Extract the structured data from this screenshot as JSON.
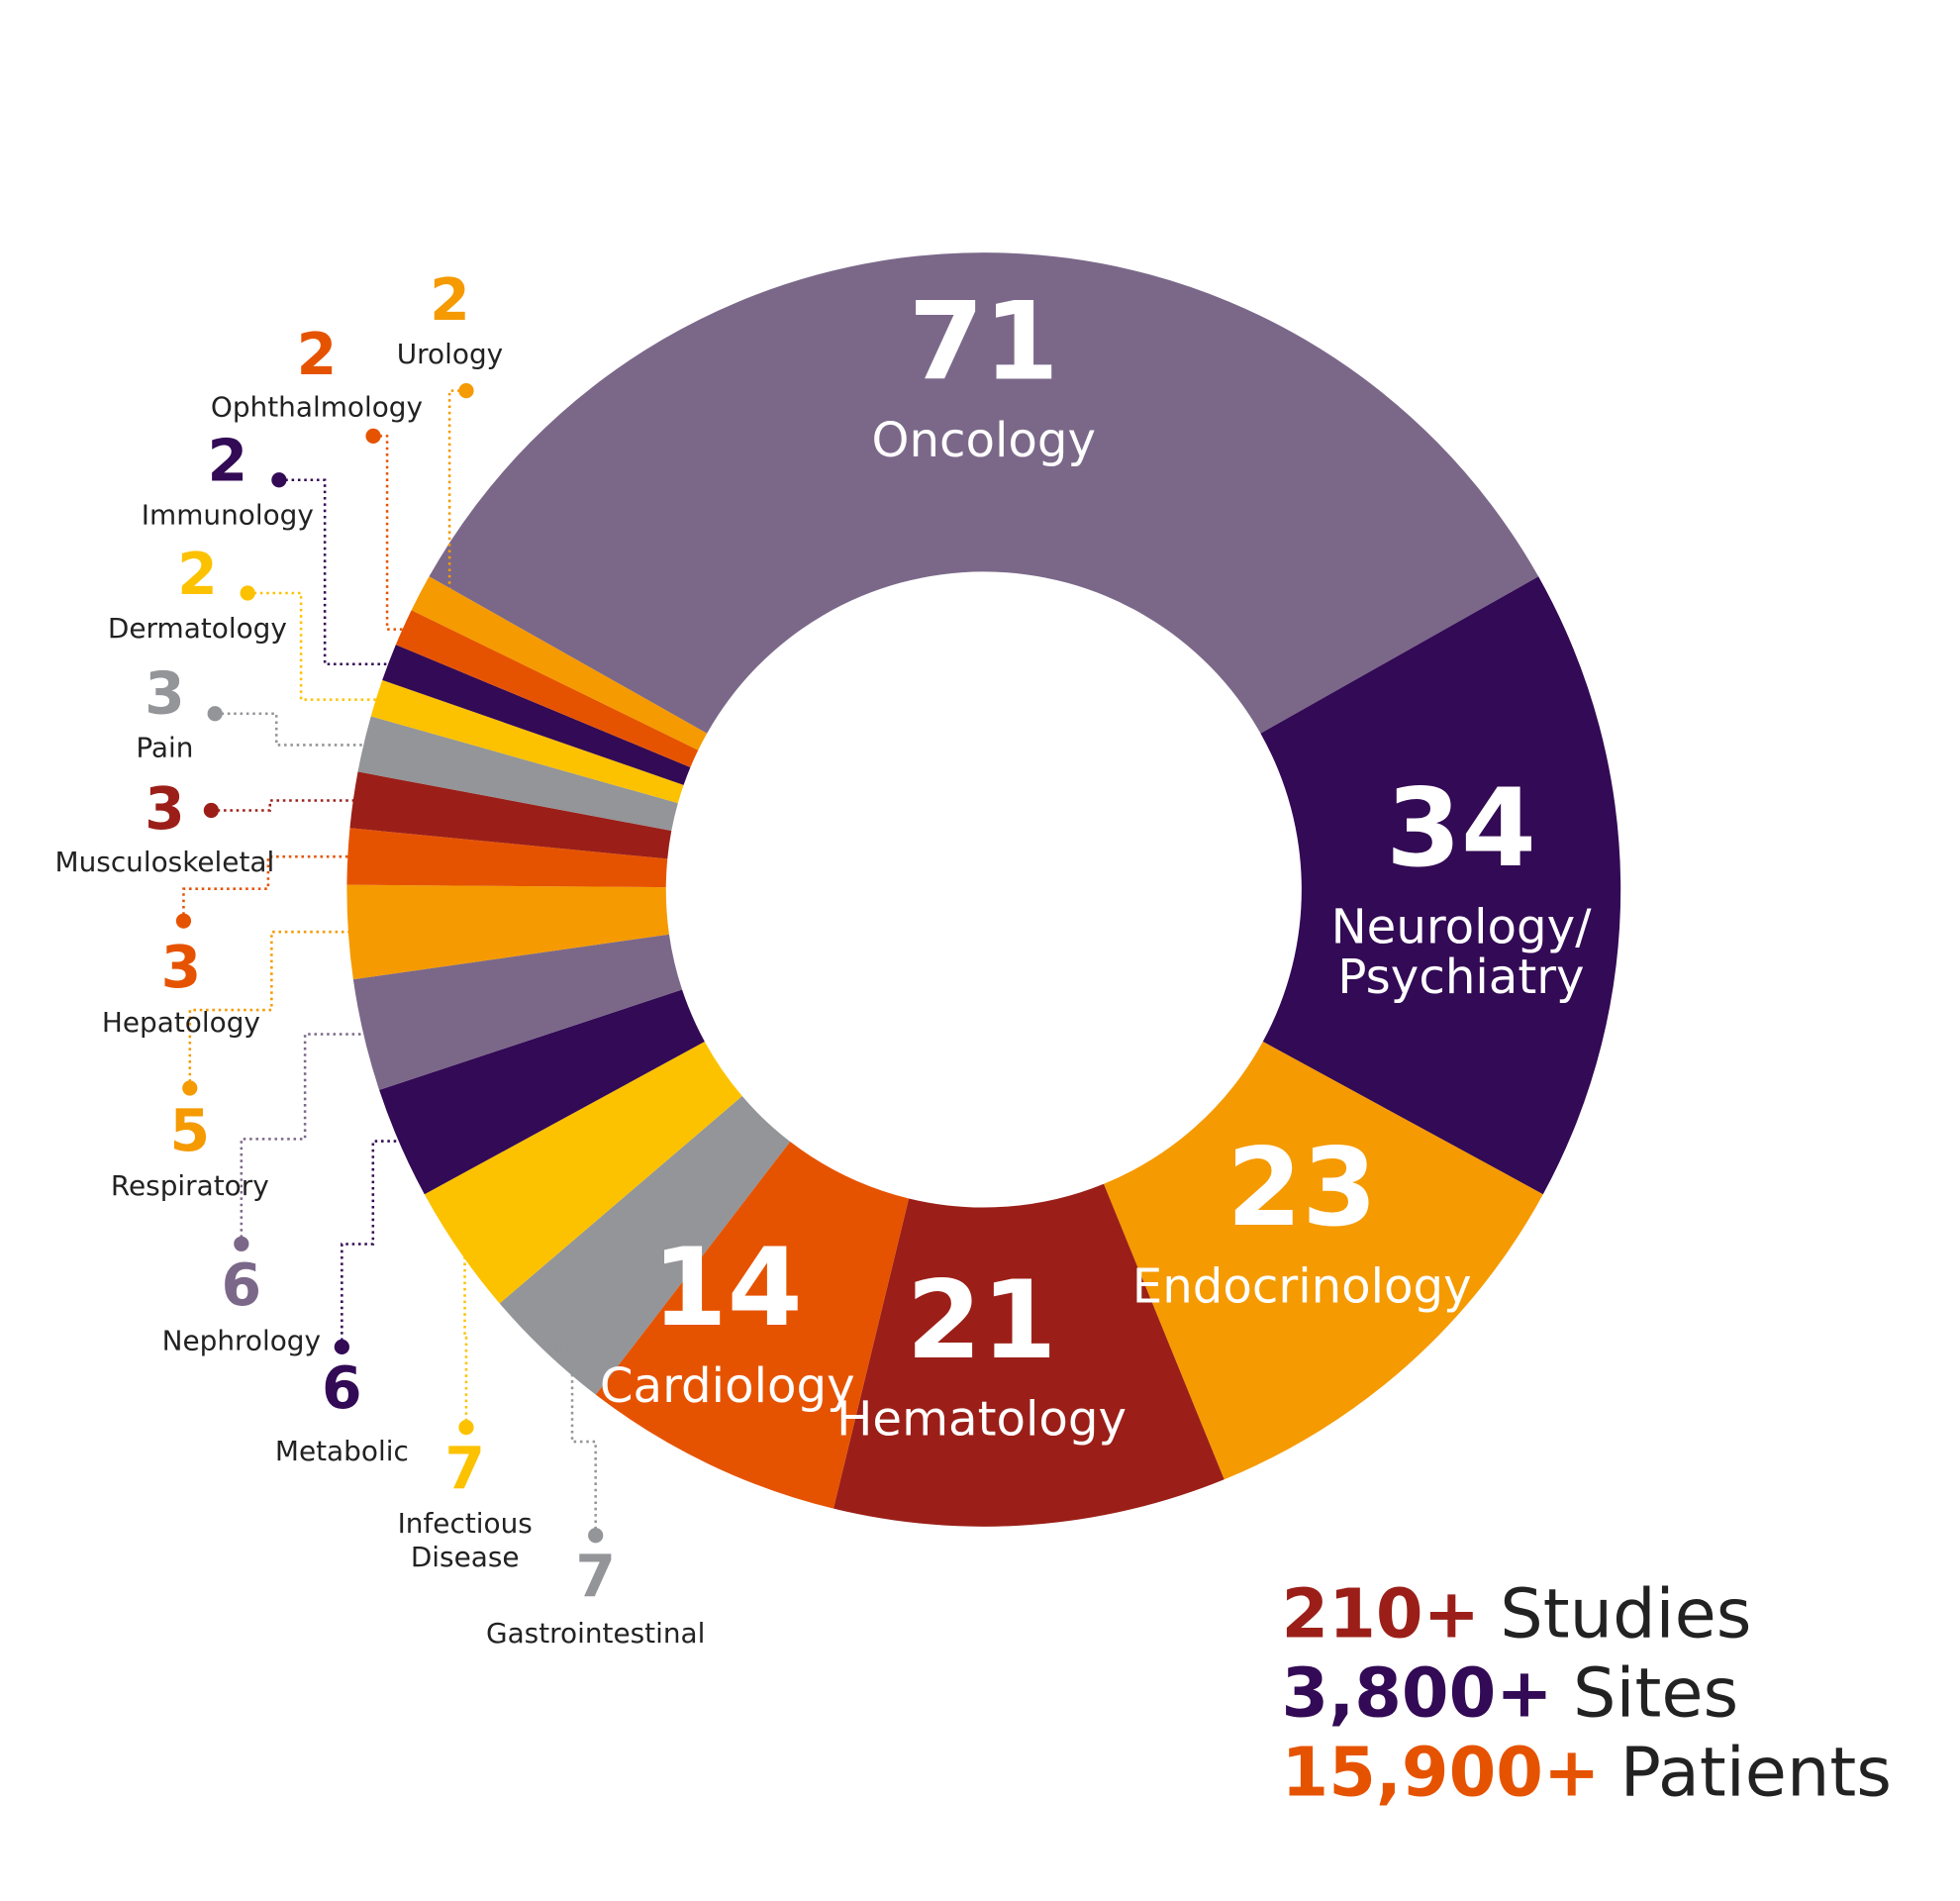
{
  "chart_data": {
    "type": "donut",
    "categories": [
      "Oncology",
      "Neurology/Psychiatry",
      "Endocrinology",
      "Hematology",
      "Cardiology",
      "Gastrointestinal",
      "Infectious Disease",
      "Metabolic",
      "Nephrology",
      "Respiratory",
      "Hepatology",
      "Musculoskeletal",
      "Pain",
      "Dermatology",
      "Immunology",
      "Ophthalmology",
      "Urology"
    ],
    "values": [
      71,
      34,
      23,
      21,
      14,
      7,
      7,
      6,
      6,
      5,
      3,
      3,
      3,
      2,
      2,
      2,
      2
    ],
    "colors": [
      "#7b6889",
      "#330a55",
      "#f59a00",
      "#9b1f18",
      "#e65300",
      "#939598",
      "#fcc200",
      "#330a55",
      "#7b6889",
      "#f59a00",
      "#e65300",
      "#9b1f18",
      "#939598",
      "#fcc200",
      "#330a55",
      "#e65300",
      "#f59a00"
    ]
  },
  "stats": [
    {
      "value": "210+",
      "label": "Studies",
      "color": "#9b1f18"
    },
    {
      "value": "3,800+",
      "label": "Sites",
      "color": "#330a55"
    },
    {
      "value": "15,900+",
      "label": "Patients",
      "color": "#e65300"
    }
  ]
}
